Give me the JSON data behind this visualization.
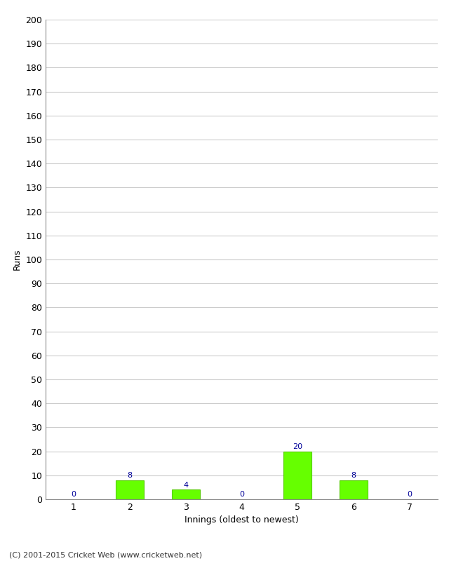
{
  "categories": [
    1,
    2,
    3,
    4,
    5,
    6,
    7
  ],
  "values": [
    0,
    8,
    4,
    0,
    20,
    8,
    0
  ],
  "bar_color": "#66ff00",
  "bar_edge_color": "#55cc00",
  "ylabel": "Runs",
  "xlabel": "Innings (oldest to newest)",
  "ylim": [
    0,
    200
  ],
  "yticks": [
    0,
    10,
    20,
    30,
    40,
    50,
    60,
    70,
    80,
    90,
    100,
    110,
    120,
    130,
    140,
    150,
    160,
    170,
    180,
    190,
    200
  ],
  "footer": "(C) 2001-2015 Cricket Web (www.cricketweb.net)",
  "label_color": "#000099",
  "background_color": "#ffffff",
  "grid_color": "#cccccc"
}
